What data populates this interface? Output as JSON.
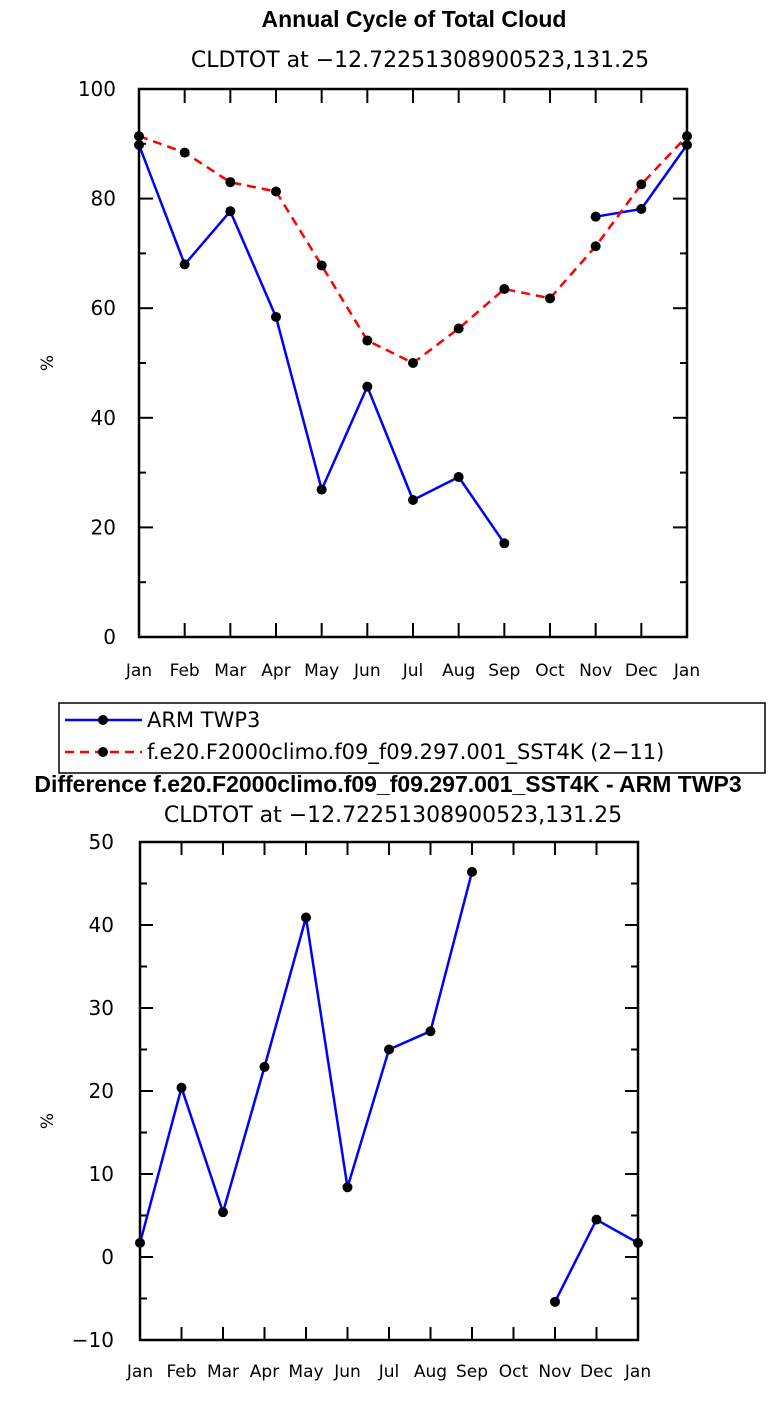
{
  "chart_data": [
    {
      "type": "line",
      "title": "Annual Cycle of Total Cloud",
      "subtitle": "CLDTOT at −12.72251308900523,131.25",
      "xlabel": "",
      "ylabel": "%",
      "ylim": [
        0,
        100
      ],
      "yticks": [
        "0",
        "20",
        "40",
        "60",
        "80",
        "100"
      ],
      "categories": [
        "Jan",
        "Feb",
        "Mar",
        "Apr",
        "May",
        "Jun",
        "Jul",
        "Aug",
        "Sep",
        "Oct",
        "Nov",
        "Dec",
        "Jan"
      ],
      "series": [
        {
          "name": "ARM TWP3",
          "color": "#0000ff",
          "dash": "solid",
          "values": [
            89.8,
            68.0,
            77.7,
            58.4,
            26.9,
            45.7,
            25.0,
            29.2,
            17.1,
            null,
            76.7,
            78.1,
            89.8
          ]
        },
        {
          "name": "f.e20.F2000climo.f09_f09.297.001_SST4K (2−11)",
          "color": "#ff0000",
          "dash": "dashed",
          "values": [
            91.4,
            88.4,
            83.0,
            81.3,
            67.8,
            54.1,
            50.0,
            56.3,
            63.5,
            61.8,
            71.3,
            82.6,
            91.4
          ]
        }
      ],
      "legend": {
        "entries": [
          "ARM TWP3",
          "f.e20.F2000climo.f09_f09.297.001_SST4K (2−11)"
        ],
        "placement": "below"
      }
    },
    {
      "type": "line",
      "title": "Difference f.e20.F2000climo.f09_f09.297.001_SST4K - ARM TWP3",
      "subtitle": "CLDTOT at −12.72251308900523,131.25",
      "xlabel": "",
      "ylabel": "%",
      "ylim": [
        -10,
        50
      ],
      "yticks": [
        "−10",
        "0",
        "10",
        "20",
        "30",
        "40",
        "50"
      ],
      "categories": [
        "Jan",
        "Feb",
        "Mar",
        "Apr",
        "May",
        "Jun",
        "Jul",
        "Aug",
        "Sep",
        "Oct",
        "Nov",
        "Dec",
        "Jan"
      ],
      "series": [
        {
          "name": "Difference",
          "color": "#0000ff",
          "dash": "solid",
          "values": [
            1.7,
            20.4,
            5.4,
            22.9,
            40.9,
            8.4,
            25.0,
            27.2,
            46.4,
            null,
            -5.4,
            4.5,
            1.7
          ]
        }
      ]
    }
  ]
}
